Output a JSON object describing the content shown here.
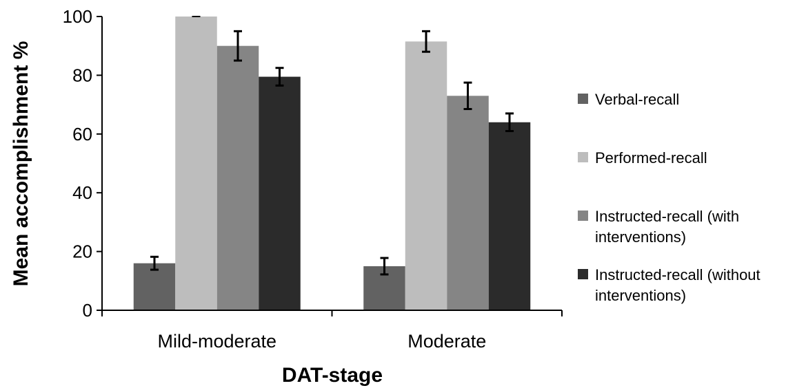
{
  "chart_data": {
    "type": "bar",
    "categories": [
      "Mild-moderate",
      "Moderate"
    ],
    "series": [
      {
        "name": "Verbal-recall",
        "color": "#626262",
        "values": [
          16,
          15
        ],
        "errors": [
          2.2,
          2.8
        ]
      },
      {
        "name": "Performed-recall",
        "color": "#bdbdbd",
        "values": [
          100,
          91.5
        ],
        "errors": [
          0,
          3.5
        ]
      },
      {
        "name": "Instructed-recall (with interventions)",
        "color": "#858585",
        "values": [
          90,
          73
        ],
        "errors": [
          5,
          4.5
        ]
      },
      {
        "name": "Instructed-recall (without interventions)",
        "color": "#2b2b2b",
        "values": [
          79.5,
          64
        ],
        "errors": [
          3,
          3
        ]
      }
    ],
    "xlabel": "DAT-stage",
    "ylabel": "Mean accomplishment %",
    "ylim": [
      0,
      100
    ],
    "yticks": [
      0,
      20,
      40,
      60,
      80,
      100
    ],
    "grid": false,
    "legend_position": "right"
  }
}
